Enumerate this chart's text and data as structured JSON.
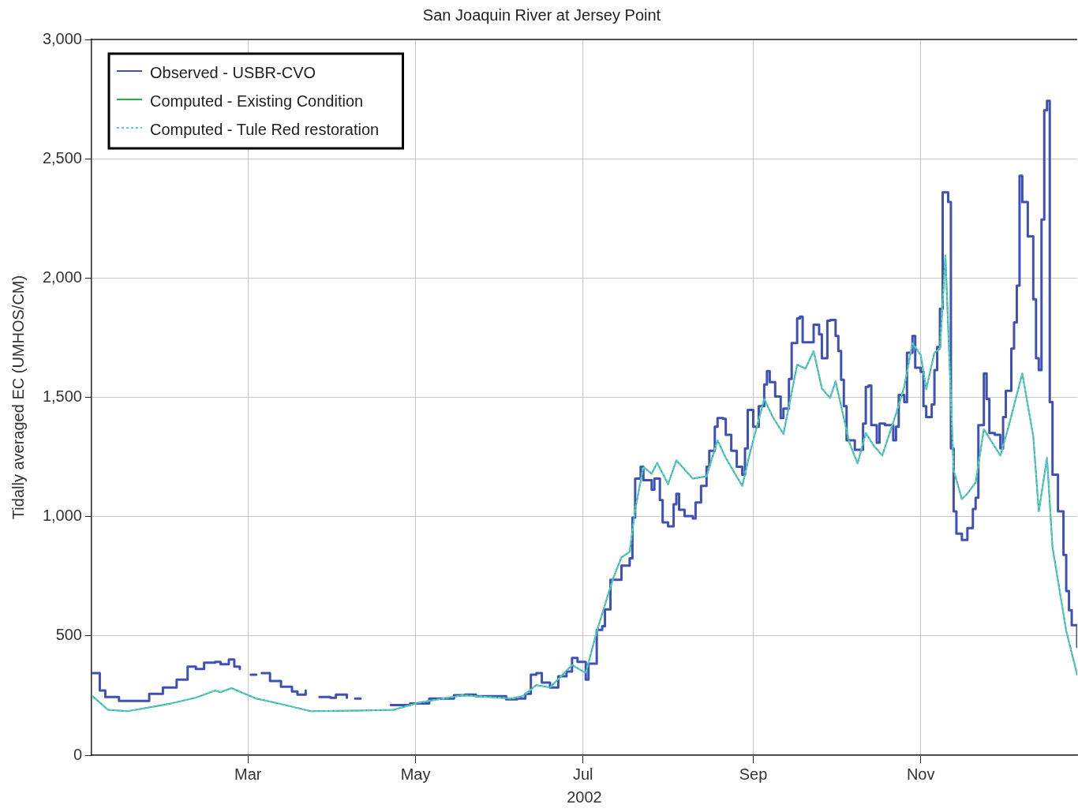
{
  "chart_data": {
    "type": "line",
    "title": "San Joaquin River at Jersey Point",
    "xlabel": "2002",
    "ylabel": "Tidally averaged EC (UMHOS/CM)",
    "xlim": [
      "2002-01-03",
      "2002-12-28"
    ],
    "xticks": [
      {
        "value": "2002-03-01",
        "label": "Mar"
      },
      {
        "value": "2002-05-01",
        "label": "May"
      },
      {
        "value": "2002-07-01",
        "label": "Jul"
      },
      {
        "value": "2002-09-01",
        "label": "Sep"
      },
      {
        "value": "2002-11-01",
        "label": "Nov"
      }
    ],
    "ylim": [
      0,
      3000
    ],
    "yticks": [
      0,
      500,
      {
        "value": 1000,
        "label": "1,000"
      },
      {
        "value": 1500,
        "label": "1,500"
      },
      {
        "value": 2000,
        "label": "2,000"
      },
      {
        "value": 2500,
        "label": "2,500"
      },
      {
        "value": 3000,
        "label": "3,000"
      }
    ],
    "grid": true,
    "legend": "top left",
    "marker": "none",
    "series": [
      {
        "name": "Observed - USBR-CVO",
        "color": "#3f51b5",
        "type": "step",
        "line_style": "solid",
        "x": [
          "2002-01-03",
          "2002-01-06",
          "2002-01-08",
          "2002-01-13",
          "2002-01-19",
          "2002-01-24",
          "2002-01-29",
          "2002-02-03",
          "2002-02-07",
          "2002-02-10",
          "2002-02-13",
          "2002-02-17",
          "2002-02-19",
          "2002-02-22",
          "2002-02-24",
          "2002-02-26",
          "2002-02-28",
          "2002-03-02",
          "2002-03-04",
          "2002-03-05",
          "2002-03-06",
          "2002-03-09",
          "2002-03-13",
          "2002-03-17",
          "2002-03-19",
          "2002-03-22",
          "2002-03-25",
          "2002-03-27",
          "2002-03-31",
          "2002-04-02",
          "2002-04-06",
          "2002-04-08",
          "2002-04-09",
          "2002-04-11",
          "2002-04-14",
          "2002-04-22",
          "2002-04-29",
          "2002-05-06",
          "2002-05-15",
          "2002-05-19",
          "2002-05-23",
          "2002-06-03",
          "2002-06-07",
          "2002-06-10",
          "2002-06-12",
          "2002-06-14",
          "2002-06-16",
          "2002-06-19",
          "2002-06-22",
          "2002-06-25",
          "2002-06-27",
          "2002-06-29",
          "2002-07-02",
          "2002-07-03",
          "2002-07-06",
          "2002-07-08",
          "2002-07-09",
          "2002-07-11",
          "2002-07-15",
          "2002-07-18",
          "2002-07-19",
          "2002-07-20",
          "2002-07-22",
          "2002-07-23",
          "2002-07-26",
          "2002-07-27",
          "2002-07-29",
          "2002-07-30",
          "2002-08-01",
          "2002-08-03",
          "2002-08-04",
          "2002-08-05",
          "2002-08-07",
          "2002-08-10",
          "2002-08-11",
          "2002-08-13",
          "2002-08-15",
          "2002-08-16",
          "2002-08-18",
          "2002-08-19",
          "2002-08-21",
          "2002-08-22",
          "2002-08-24",
          "2002-08-26",
          "2002-08-28",
          "2002-08-29",
          "2002-08-30",
          "2002-09-01",
          "2002-09-03",
          "2002-09-05",
          "2002-09-06",
          "2002-09-07",
          "2002-09-09",
          "2002-09-11",
          "2002-09-12",
          "2002-09-14",
          "2002-09-15",
          "2002-09-17",
          "2002-09-18",
          "2002-09-19",
          "2002-09-23",
          "2002-09-25",
          "2002-09-26",
          "2002-09-28",
          "2002-09-29",
          "2002-10-01",
          "2002-10-02",
          "2002-10-03",
          "2002-10-04",
          "2002-10-05",
          "2002-10-08",
          "2002-10-11",
          "2002-10-12",
          "2002-10-13",
          "2002-10-14",
          "2002-10-16",
          "2002-10-17",
          "2002-10-19",
          "2002-10-22",
          "2002-10-23",
          "2002-10-24",
          "2002-10-26",
          "2002-10-27",
          "2002-10-29",
          "2002-10-30",
          "2002-11-01",
          "2002-11-02",
          "2002-11-03",
          "2002-11-05",
          "2002-11-06",
          "2002-11-07",
          "2002-11-08",
          "2002-11-09",
          "2002-11-11",
          "2002-11-12",
          "2002-11-13",
          "2002-11-14",
          "2002-11-16",
          "2002-11-18",
          "2002-11-20",
          "2002-11-21",
          "2002-11-22",
          "2002-11-24",
          "2002-11-25",
          "2002-11-26",
          "2002-11-28",
          "2002-11-30",
          "2002-12-01",
          "2002-12-02",
          "2002-12-04",
          "2002-12-05",
          "2002-12-06",
          "2002-12-07",
          "2002-12-08",
          "2002-12-09",
          "2002-12-10",
          "2002-12-12",
          "2002-12-13",
          "2002-12-14",
          "2002-12-15",
          "2002-12-16",
          "2002-12-17",
          "2002-12-18",
          "2002-12-19",
          "2002-12-21",
          "2002-12-23",
          "2002-12-24",
          "2002-12-25",
          "2002-12-26",
          "2002-12-28"
        ],
        "values": [
          344,
          271,
          244,
          227,
          227,
          257,
          284,
          317,
          371,
          361,
          388,
          391,
          381,
          401,
          371,
          361,
          null,
          337,
          337,
          null,
          344,
          311,
          287,
          267,
          254,
          271,
          null,
          244,
          241,
          254,
          241,
          null,
          237,
          237,
          null,
          210,
          217,
          237,
          251,
          254,
          247,
          234,
          237,
          257,
          337,
          344,
          304,
          284,
          331,
          351,
          408,
          391,
          317,
          384,
          525,
          541,
          611,
          735,
          795,
          825,
          996,
          1159,
          1209,
          1153,
          1113,
          1159,
          1069,
          976,
          959,
          1052,
          1096,
          1029,
          1002,
          992,
          1059,
          1129,
          1209,
          1276,
          1377,
          1413,
          1410,
          1343,
          1276,
          1209,
          1176,
          1286,
          1447,
          1377,
          1463,
          1554,
          1610,
          1564,
          1503,
          1413,
          1453,
          1577,
          1727,
          1831,
          1838,
          1731,
          1804,
          1764,
          1664,
          1821,
          1824,
          1757,
          1694,
          1574,
          1463,
          1320,
          1280,
          1390,
          1544,
          1550,
          1383,
          1310,
          1390,
          1383,
          1320,
          1377,
          1510,
          1480,
          1687,
          1757,
          1624,
          1607,
          1463,
          1417,
          1470,
          1614,
          1711,
          1871,
          2359,
          2319,
          1286,
          1022,
          929,
          902,
          952,
          1032,
          1079,
          1383,
          1600,
          1493,
          1350,
          1343,
          1286,
          1417,
          1527,
          1704,
          1814,
          1968,
          2429,
          2319,
          2319,
          2175,
          1911,
          1664,
          1614,
          2245,
          2703,
          2743,
          1480,
          1176,
          1022,
          839,
          688,
          608,
          545,
          454
        ]
      },
      {
        "name": "Computed - Existing Condition",
        "color": "#22b14c",
        "type": "line",
        "line_style": "solid",
        "x": [
          "2002-01-03",
          "2002-01-09",
          "2002-01-16",
          "2002-01-24",
          "2002-02-01",
          "2002-02-10",
          "2002-02-17",
          "2002-02-19",
          "2002-02-23",
          "2002-03-04",
          "2002-03-12",
          "2002-03-24",
          "2002-04-10",
          "2002-04-23",
          "2002-05-02",
          "2002-05-18",
          "2002-06-05",
          "2002-06-09",
          "2002-06-14",
          "2002-06-19",
          "2002-06-27",
          "2002-07-02",
          "2002-07-06",
          "2002-07-12",
          "2002-07-15",
          "2002-07-18",
          "2002-07-20",
          "2002-07-23",
          "2002-07-26",
          "2002-07-28",
          "2002-08-01",
          "2002-08-04",
          "2002-08-10",
          "2002-08-15",
          "2002-08-19",
          "2002-08-22",
          "2002-08-28",
          "2002-08-31",
          "2002-09-05",
          "2002-09-08",
          "2002-09-12",
          "2002-09-17",
          "2002-09-20",
          "2002-09-23",
          "2002-09-26",
          "2002-09-29",
          "2002-10-01",
          "2002-10-06",
          "2002-10-09",
          "2002-10-12",
          "2002-10-15",
          "2002-10-18",
          "2002-10-23",
          "2002-10-26",
          "2002-10-29",
          "2002-11-01",
          "2002-11-03",
          "2002-11-06",
          "2002-11-08",
          "2002-11-10",
          "2002-11-13",
          "2002-11-16",
          "2002-11-18",
          "2002-11-21",
          "2002-11-24",
          "2002-11-30",
          "2002-12-03",
          "2002-12-08",
          "2002-12-12",
          "2002-12-14",
          "2002-12-17",
          "2002-12-19",
          "2002-12-24",
          "2002-12-28"
        ],
        "values": [
          251,
          190,
          184,
          200,
          217,
          241,
          271,
          264,
          281,
          237,
          217,
          184,
          187,
          190,
          220,
          251,
          237,
          247,
          294,
          284,
          378,
          344,
          518,
          742,
          829,
          852,
          1029,
          1209,
          1179,
          1226,
          1136,
          1236,
          1159,
          1169,
          1320,
          1246,
          1129,
          1276,
          1493,
          1420,
          1346,
          1637,
          1620,
          1694,
          1537,
          1497,
          1567,
          1310,
          1223,
          1350,
          1296,
          1256,
          1430,
          1544,
          1727,
          1677,
          1534,
          1687,
          1704,
          2095,
          1193,
          1073,
          1096,
          1143,
          1366,
          1256,
          1377,
          1600,
          1336,
          1022,
          1246,
          872,
          521,
          337
        ]
      },
      {
        "name": "Computed - Tule Red restoration",
        "color": "#5bc8e0",
        "type": "line",
        "line_style": "dotted",
        "x": [
          "2002-01-03",
          "2002-01-09",
          "2002-01-16",
          "2002-01-24",
          "2002-02-01",
          "2002-02-10",
          "2002-02-17",
          "2002-02-19",
          "2002-02-23",
          "2002-03-04",
          "2002-03-12",
          "2002-03-24",
          "2002-04-10",
          "2002-04-23",
          "2002-05-02",
          "2002-05-18",
          "2002-06-05",
          "2002-06-09",
          "2002-06-14",
          "2002-06-19",
          "2002-06-27",
          "2002-07-02",
          "2002-07-06",
          "2002-07-12",
          "2002-07-15",
          "2002-07-18",
          "2002-07-20",
          "2002-07-23",
          "2002-07-26",
          "2002-07-28",
          "2002-08-01",
          "2002-08-04",
          "2002-08-10",
          "2002-08-15",
          "2002-08-19",
          "2002-08-22",
          "2002-08-28",
          "2002-08-31",
          "2002-09-05",
          "2002-09-08",
          "2002-09-12",
          "2002-09-17",
          "2002-09-20",
          "2002-09-23",
          "2002-09-26",
          "2002-09-29",
          "2002-10-01",
          "2002-10-06",
          "2002-10-09",
          "2002-10-12",
          "2002-10-15",
          "2002-10-18",
          "2002-10-23",
          "2002-10-26",
          "2002-10-29",
          "2002-11-01",
          "2002-11-03",
          "2002-11-06",
          "2002-11-08",
          "2002-11-10",
          "2002-11-13",
          "2002-11-16",
          "2002-11-18",
          "2002-11-21",
          "2002-11-24",
          "2002-11-30",
          "2002-12-03",
          "2002-12-08",
          "2002-12-12",
          "2002-12-14",
          "2002-12-17",
          "2002-12-19",
          "2002-12-24",
          "2002-12-28"
        ],
        "values": [
          251,
          190,
          184,
          200,
          217,
          241,
          271,
          264,
          281,
          237,
          217,
          184,
          187,
          190,
          220,
          251,
          237,
          247,
          294,
          284,
          378,
          344,
          518,
          742,
          829,
          852,
          1029,
          1209,
          1179,
          1226,
          1136,
          1236,
          1159,
          1169,
          1320,
          1246,
          1129,
          1276,
          1493,
          1420,
          1346,
          1637,
          1620,
          1694,
          1537,
          1497,
          1567,
          1310,
          1223,
          1350,
          1296,
          1256,
          1430,
          1544,
          1727,
          1677,
          1534,
          1687,
          1704,
          2095,
          1193,
          1073,
          1096,
          1143,
          1366,
          1256,
          1377,
          1600,
          1336,
          1022,
          1246,
          872,
          521,
          337
        ]
      }
    ]
  }
}
